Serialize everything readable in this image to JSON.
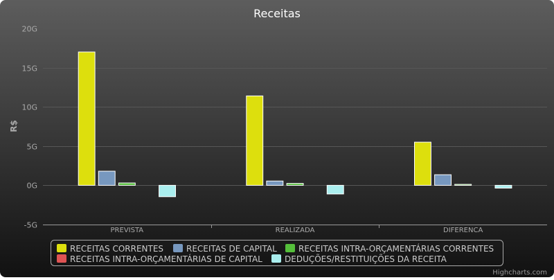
{
  "chart_data": {
    "type": "bar",
    "title": "Receitas",
    "xlabel": "",
    "ylabel": "R$",
    "categories": [
      "PREVISTA",
      "REALIZADA",
      "DIFERENCA"
    ],
    "ylim": [
      -5,
      20
    ],
    "yticks": [
      -5,
      0,
      5,
      10,
      15,
      20
    ],
    "ytick_labels": [
      "-5G",
      "0G",
      "5G",
      "10G",
      "15G",
      "20G"
    ],
    "grid": true,
    "legend_position": "bottom",
    "series": [
      {
        "name": "RECEITAS CORRENTES",
        "color": "#dddf0d",
        "values": [
          17.0,
          11.4,
          5.5
        ]
      },
      {
        "name": "RECEITAS DE CAPITAL",
        "color": "#7798bf",
        "values": [
          1.8,
          0.55,
          1.35
        ]
      },
      {
        "name": "RECEITAS INTRA-ORÇAMENTÁRIAS CORRENTES",
        "color": "#55bf3b",
        "values": [
          0.3,
          0.25,
          0.12
        ]
      },
      {
        "name": "RECEITAS INTRA-ORÇAMENTÁRIAS DE CAPITAL",
        "color": "#df5353",
        "values": [
          0,
          0,
          0
        ]
      },
      {
        "name": "DEDUÇÕES/RESTITUIÇÕES DA RECEITA",
        "color": "#aaeeee",
        "values": [
          -1.45,
          -1.1,
          -0.35
        ]
      }
    ]
  },
  "credits": "Highcharts.com"
}
